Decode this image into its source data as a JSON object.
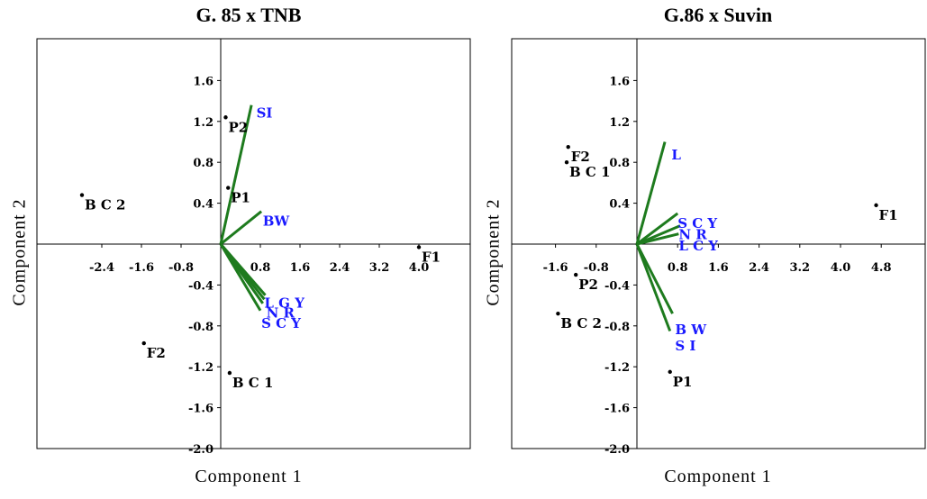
{
  "chart_data": [
    {
      "type": "scatter",
      "title": "G. 85 x TNB",
      "xlabel": "Component 1",
      "ylabel": "Component 2",
      "xlim": [
        -3.1,
        4.0
      ],
      "ylim": [
        -2.0,
        2.2
      ],
      "x_ticks": [
        -2.4,
        -1.6,
        -0.8,
        0.8,
        1.6,
        2.4,
        3.2,
        4.0
      ],
      "x_tick_labels": [
        "-2.4",
        "-1.6",
        "-0.8",
        "0.8",
        "1.6",
        "2.4",
        "3.2",
        "4.0"
      ],
      "y_ticks": [
        1.6,
        1.2,
        0.8,
        0.4,
        -0.4,
        -0.8,
        -1.2,
        -1.6,
        -2.0
      ],
      "y_tick_labels": [
        "1.6",
        "1.2",
        "0.8",
        "0.4",
        "-0.4",
        "-0.8",
        "-1.2",
        "-1.6",
        "-2.0"
      ],
      "grid": false,
      "points": [
        {
          "label": "P2",
          "x": 0.1,
          "y": 1.24
        },
        {
          "label": "P1",
          "x": 0.15,
          "y": 0.55
        },
        {
          "label": "BC2",
          "x": -2.8,
          "y": 0.48
        },
        {
          "label": "F2",
          "x": -1.55,
          "y": -0.97
        },
        {
          "label": "BC1",
          "x": 0.18,
          "y": -1.26
        },
        {
          "label": "F1",
          "x": 4.0,
          "y": -0.03
        }
      ],
      "vectors": [
        {
          "label": "SI",
          "x": 0.62,
          "y": 1.36
        },
        {
          "label": "BW",
          "x": 0.82,
          "y": 0.32
        },
        {
          "label": "L",
          "x": 0.9,
          "y": -0.5
        },
        {
          "label": "NR",
          "x": 0.85,
          "y": -0.58
        },
        {
          "label": "LCY",
          "x": 0.88,
          "y": -0.54
        },
        {
          "label": "SCY",
          "x": 0.8,
          "y": -0.65
        }
      ],
      "vector_labels": [
        {
          "text": "SI",
          "x": 0.72,
          "y": 1.24
        },
        {
          "text": "BW",
          "x": 0.85,
          "y": 0.18
        },
        {
          "text": "L G Y",
          "x": 0.88,
          "y": -0.62
        },
        {
          "text": "N R",
          "x": 0.92,
          "y": -0.72
        },
        {
          "text": "S C Y",
          "x": 0.82,
          "y": -0.82
        }
      ],
      "colors": {
        "points": "#000000",
        "vectors": "#1e7b1e",
        "vector_labels": "#1a1aff"
      }
    },
    {
      "type": "scatter",
      "title": "G.86 x Suvin",
      "xlabel": "Component 1",
      "ylabel": "Component 2",
      "xlim": [
        -2.25,
        5.1
      ],
      "ylim": [
        -2.0,
        2.2
      ],
      "x_ticks": [
        -1.6,
        -0.8,
        0.8,
        1.6,
        2.4,
        3.2,
        4.0,
        4.8
      ],
      "x_tick_labels": [
        "-1.6",
        "-0.8",
        "0.8",
        "1.6",
        "2.4",
        "3.2",
        "4.0",
        "4.8"
      ],
      "y_ticks": [
        1.6,
        1.2,
        0.8,
        0.4,
        -0.4,
        -0.8,
        -1.2,
        -1.6,
        -2.0
      ],
      "y_tick_labels": [
        "1.6",
        "1.2",
        "0.8",
        "0.4",
        "-0.4",
        "-0.8",
        "-1.2",
        "-1.6",
        "-2.0"
      ],
      "grid": false,
      "points": [
        {
          "label": "F2",
          "x": -1.35,
          "y": 0.95
        },
        {
          "label": "BC1",
          "x": -1.38,
          "y": 0.8
        },
        {
          "label": "P2",
          "x": -1.2,
          "y": -0.3
        },
        {
          "label": "BC2",
          "x": -1.55,
          "y": -0.68
        },
        {
          "label": "P1",
          "x": 0.65,
          "y": -1.25
        },
        {
          "label": "F1",
          "x": 4.7,
          "y": 0.38
        }
      ],
      "vectors": [
        {
          "label": "L",
          "x": 0.55,
          "y": 1.0
        },
        {
          "label": "SCY",
          "x": 0.8,
          "y": 0.3
        },
        {
          "label": "NR",
          "x": 0.85,
          "y": 0.18
        },
        {
          "label": "LCY",
          "x": 0.82,
          "y": 0.1
        },
        {
          "label": "BW",
          "x": 0.7,
          "y": -0.68
        },
        {
          "label": "SI",
          "x": 0.65,
          "y": -0.85
        }
      ],
      "vector_labels": [
        {
          "text": "L",
          "x": 0.68,
          "y": 0.83
        },
        {
          "text": "S C Y",
          "x": 0.8,
          "y": 0.16
        },
        {
          "text": "N R",
          "x": 0.82,
          "y": 0.05
        },
        {
          "text": "L C Y",
          "x": 0.82,
          "y": -0.06
        },
        {
          "text": "B W",
          "x": 0.75,
          "y": -0.88
        },
        {
          "text": "S I",
          "x": 0.75,
          "y": -1.04
        }
      ],
      "colors": {
        "points": "#000000",
        "vectors": "#1e7b1e",
        "vector_labels": "#1a1aff"
      }
    }
  ],
  "point_label_text": {
    "P1": "P1",
    "P2": "P2",
    "F1": "F1",
    "F2": "F2",
    "BC1": "B C 1",
    "BC2": "B C 2"
  },
  "panel_labels": {
    "left": {
      "title": "G. 85 x TNB",
      "xlabel": "Component 1",
      "ylabel": "Component 2"
    },
    "right": {
      "title": "G.86 x Suvin",
      "xlabel": "Component 1",
      "ylabel": "Component 2"
    }
  }
}
